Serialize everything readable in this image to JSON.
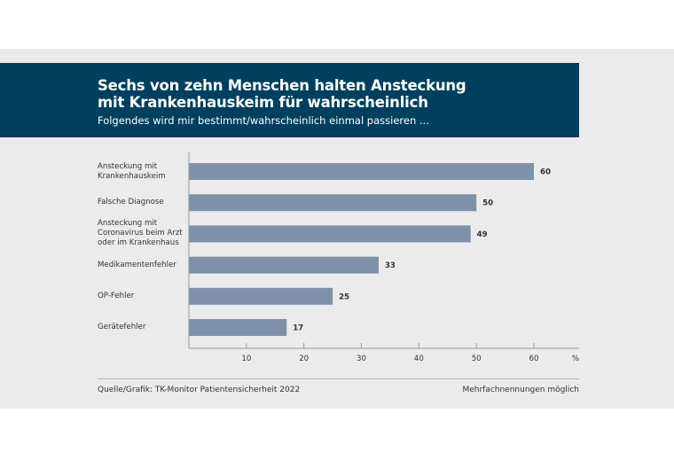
{
  "colors": {
    "header": "#00405f",
    "bar": "#7f91a9",
    "background": "#ebebeb"
  },
  "chart_data": {
    "type": "bar",
    "orientation": "horizontal",
    "title": "Sechs von zehn Menschen halten Ansteckung\nmit Krankenhauskeim für wahrscheinlich",
    "subtitle": "Folgendes wird mir bestimmt/wahrscheinlich einmal passieren ...",
    "categories": [
      "Ansteckung mit\nKrankenhauskeim",
      "Falsche Diagnose",
      "Ansteckung mit\nCoronavirus beim Arzt\noder im Krankenhaus",
      "Medikamentenfehler",
      "OP-Fehler",
      "Gerätefehler"
    ],
    "values": [
      60,
      50,
      49,
      33,
      25,
      17
    ],
    "xticks": [
      10,
      20,
      30,
      40,
      50,
      60
    ],
    "xunit": "%",
    "xlim": [
      0,
      65
    ],
    "grid": false
  },
  "footer": {
    "source": "Quelle/Grafik: TK-Monitor Patientensicherheit 2022",
    "note": "Mehrfachnennungen möglich"
  }
}
